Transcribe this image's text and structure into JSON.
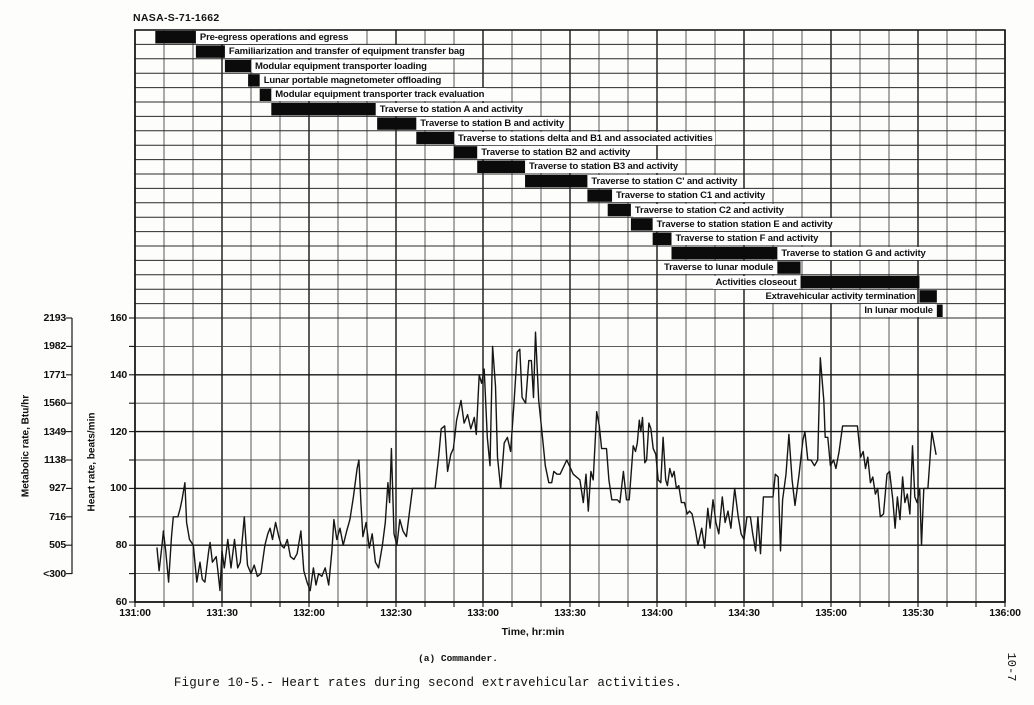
{
  "page": {
    "report_id": "NASA-S-71-1662",
    "page_number": "10-7",
    "subcaption": "(a) Commander.",
    "figure_caption": "Figure 10-5.- Heart rates during second extravehicular activities."
  },
  "colors": {
    "ink": "#161616",
    "grid_minor": "#464646",
    "gantt_line": "#2a2a2a",
    "bar_fill": "#0b0b0b",
    "paper": "#fdfdfb"
  },
  "chart_data": {
    "type": "line",
    "title": "Heart rates during second extravehicular activities - Commander",
    "xlabel": "Time, hr:min",
    "x_ticks": [
      "131:00",
      "131:30",
      "132:00",
      "132:30",
      "133:00",
      "133:30",
      "134:00",
      "134:30",
      "135:00",
      "135:30",
      "136:00"
    ],
    "x_minor_step_min": 10,
    "x_range_minutes_from_131_00": [
      0,
      300
    ],
    "grid": "on",
    "heart_rate_axis": {
      "label": "Heart rate, beats/min",
      "tick_labels": [
        "160",
        "140",
        "120",
        "100",
        "80",
        "60"
      ],
      "minor_step": 10,
      "range": [
        60,
        160
      ]
    },
    "metabolic_axis": {
      "label": "Metabolic rate, Btu/hr",
      "tick_labels": [
        "2193",
        "1982",
        "1771",
        "1560",
        "1349",
        "1138",
        "927",
        "716",
        "505",
        "<300"
      ]
    },
    "timeline_tasks": [
      {
        "label": "Pre-egress operations and egress",
        "start_min": 7,
        "end_min": 21,
        "label_side": "right"
      },
      {
        "label": "Familiarization and transfer of equipment transfer bag",
        "start_min": 21,
        "end_min": 31,
        "label_side": "right"
      },
      {
        "label": "Modular equipment transporter loading",
        "start_min": 31,
        "end_min": 40,
        "label_side": "right"
      },
      {
        "label": "Lunar portable magnetometer offloading",
        "start_min": 39,
        "end_min": 43,
        "label_side": "right"
      },
      {
        "label": "Modular equipment transporter track evaluation",
        "start_min": 43,
        "end_min": 47,
        "label_side": "right"
      },
      {
        "label": "Traverse to station A and activity",
        "start_min": 47,
        "end_min": 83,
        "label_side": "right"
      },
      {
        "label": "Traverse to station B and activity",
        "start_min": 83.5,
        "end_min": 97,
        "label_side": "right"
      },
      {
        "label": "Traverse to stations delta and B1 and associated activities",
        "start_min": 97,
        "end_min": 110,
        "label_side": "right"
      },
      {
        "label": "Traverse to station B2 and activity",
        "start_min": 110,
        "end_min": 118,
        "label_side": "right"
      },
      {
        "label": "Traverse to station B3 and activity",
        "start_min": 118,
        "end_min": 134.5,
        "label_side": "right"
      },
      {
        "label": "Traverse to station C' and activity",
        "start_min": 134.5,
        "end_min": 156,
        "label_side": "right"
      },
      {
        "label": "Traverse to station C1 and activity",
        "start_min": 156,
        "end_min": 164.5,
        "label_side": "right"
      },
      {
        "label": "Traverse to station C2 and activity",
        "start_min": 163,
        "end_min": 171,
        "label_side": "right"
      },
      {
        "label": "Traverse to station station E and activity",
        "start_min": 171,
        "end_min": 178.5,
        "label_side": "right"
      },
      {
        "label": "Traverse to station F and activity",
        "start_min": 178.5,
        "end_min": 185,
        "label_side": "right"
      },
      {
        "label": "Traverse to station G and activity",
        "start_min": 185,
        "end_min": 221.5,
        "label_side": "right"
      },
      {
        "label": "Traverse to lunar module",
        "start_min": 221.5,
        "end_min": 229.5,
        "label_side": "left"
      },
      {
        "label": "Activities closeout",
        "start_min": 229.5,
        "end_min": 270.5,
        "label_side": "left"
      },
      {
        "label": "Extravehicular activity termination",
        "start_min": 270.5,
        "end_min": 276.5,
        "label_side": "left"
      },
      {
        "label": "In lunar module",
        "start_min": 276.5,
        "end_min": 278.5,
        "label_side": "left"
      }
    ],
    "heart_rate_series": {
      "name": "Commander heart rate",
      "x_unit": "minutes after 131:00",
      "y_unit": "beats/min",
      "points": [
        [
          7.6,
          79
        ],
        [
          8.3,
          71
        ],
        [
          9.3,
          80
        ],
        [
          9.8,
          85
        ],
        [
          10.6,
          78
        ],
        [
          11.6,
          67
        ],
        [
          12.6,
          83
        ],
        [
          13.2,
          90
        ],
        [
          14.8,
          90
        ],
        [
          15.6,
          93
        ],
        [
          16.2,
          96
        ],
        [
          17.2,
          102
        ],
        [
          17.8,
          88
        ],
        [
          18.8,
          82
        ],
        [
          20.1,
          80
        ],
        [
          21.3,
          67
        ],
        [
          22.4,
          74
        ],
        [
          23.2,
          68
        ],
        [
          24.1,
          67
        ],
        [
          25.4,
          78
        ],
        [
          25.9,
          81
        ],
        [
          26.7,
          74
        ],
        [
          28,
          76
        ],
        [
          28.6,
          71
        ],
        [
          29.3,
          64
        ],
        [
          30,
          78
        ],
        [
          30.8,
          72
        ],
        [
          32,
          82
        ],
        [
          33.1,
          72
        ],
        [
          34.3,
          82
        ],
        [
          35.4,
          72
        ],
        [
          36.3,
          74
        ],
        [
          37.7,
          90
        ],
        [
          38.8,
          73
        ],
        [
          40,
          70
        ],
        [
          41.1,
          73
        ],
        [
          42.2,
          69
        ],
        [
          43.4,
          70
        ],
        [
          44.8,
          80
        ],
        [
          45.8,
          84
        ],
        [
          46.6,
          86
        ],
        [
          47.4,
          82
        ],
        [
          48.5,
          88
        ],
        [
          49.6,
          83
        ],
        [
          50.4,
          80
        ],
        [
          51.4,
          79
        ],
        [
          52.5,
          82
        ],
        [
          53.6,
          76
        ],
        [
          54.8,
          75
        ],
        [
          55.9,
          77
        ],
        [
          57.2,
          85
        ],
        [
          58.2,
          71
        ],
        [
          59.3,
          67
        ],
        [
          60.4,
          64
        ],
        [
          61.5,
          72
        ],
        [
          62.4,
          66
        ],
        [
          63.3,
          70
        ],
        [
          64.4,
          69
        ],
        [
          65.6,
          72
        ],
        [
          66.8,
          66
        ],
        [
          67.9,
          78
        ],
        [
          68.6,
          89
        ],
        [
          69.6,
          82
        ],
        [
          70.7,
          86
        ],
        [
          71.8,
          80
        ],
        [
          73,
          85
        ],
        [
          74.1,
          89
        ],
        [
          75.3,
          97
        ],
        [
          76.6,
          107
        ],
        [
          77.2,
          110
        ],
        [
          77.9,
          95
        ],
        [
          78.6,
          83
        ],
        [
          79.7,
          88
        ],
        [
          80.8,
          79
        ],
        [
          81.8,
          84
        ],
        [
          82.9,
          74
        ],
        [
          84,
          72
        ],
        [
          85.3,
          80
        ],
        [
          86.3,
          88
        ],
        [
          87.2,
          102
        ],
        [
          87.8,
          95
        ],
        [
          88.4,
          114
        ],
        [
          89.3,
          84
        ],
        [
          90.3,
          80
        ],
        [
          91.3,
          89
        ],
        [
          92.4,
          85
        ],
        [
          93.6,
          83
        ],
        [
          94.7,
          92
        ],
        [
          95.7,
          100
        ],
        [
          97.5,
          100
        ],
        [
          99.5,
          100
        ],
        [
          101.5,
          100
        ],
        [
          103.5,
          100
        ],
        [
          104.8,
          112
        ],
        [
          105.6,
          121
        ],
        [
          106.8,
          122
        ],
        [
          107.8,
          106
        ],
        [
          108.9,
          112
        ],
        [
          109.8,
          114
        ],
        [
          110.9,
          124
        ],
        [
          112.4,
          131
        ],
        [
          113.5,
          123
        ],
        [
          114.7,
          126
        ],
        [
          115.8,
          121
        ],
        [
          117,
          125
        ],
        [
          117.7,
          119
        ],
        [
          118.7,
          140
        ],
        [
          119.5,
          137
        ],
        [
          120.4,
          142
        ],
        [
          121.5,
          118
        ],
        [
          122.4,
          108
        ],
        [
          123.3,
          150
        ],
        [
          124.3,
          136
        ],
        [
          125,
          111
        ],
        [
          126.1,
          100
        ],
        [
          127.3,
          116
        ],
        [
          128.4,
          118
        ],
        [
          129.5,
          113
        ],
        [
          130.7,
          130
        ],
        [
          131.8,
          148
        ],
        [
          132.7,
          149
        ],
        [
          133.5,
          132
        ],
        [
          134.7,
          130
        ],
        [
          135.8,
          145
        ],
        [
          136.7,
          145
        ],
        [
          137.4,
          132
        ],
        [
          138.1,
          155
        ],
        [
          139.2,
          131
        ],
        [
          140.4,
          119
        ],
        [
          141.5,
          108
        ],
        [
          142.7,
          102
        ],
        [
          143.7,
          102
        ],
        [
          144.4,
          106
        ],
        [
          145.5,
          105
        ],
        [
          146.6,
          105
        ],
        [
          148.9,
          110
        ],
        [
          151.1,
          105
        ],
        [
          153.4,
          103
        ],
        [
          154.6,
          95
        ],
        [
          155.5,
          105
        ],
        [
          156.3,
          92
        ],
        [
          157.2,
          106
        ],
        [
          158,
          103
        ],
        [
          159.2,
          127
        ],
        [
          160.1,
          122
        ],
        [
          160.9,
          114
        ],
        [
          162.6,
          114
        ],
        [
          163.4,
          103
        ],
        [
          164.4,
          96
        ],
        [
          166.3,
          96
        ],
        [
          167.2,
          95
        ],
        [
          168.4,
          106
        ],
        [
          169.5,
          96
        ],
        [
          170.4,
          96
        ],
        [
          171.8,
          115
        ],
        [
          172.6,
          113
        ],
        [
          173.2,
          116
        ],
        [
          173.9,
          124
        ],
        [
          174.4,
          120
        ],
        [
          175,
          125
        ],
        [
          175.8,
          109
        ],
        [
          176.4,
          110
        ],
        [
          177.2,
          123
        ],
        [
          177.9,
          121
        ],
        [
          178.7,
          114
        ],
        [
          179.6,
          112
        ],
        [
          180.4,
          103
        ],
        [
          181.3,
          102
        ],
        [
          182.1,
          118
        ],
        [
          183,
          103
        ],
        [
          183.6,
          101
        ],
        [
          184.4,
          107
        ],
        [
          185.2,
          104
        ],
        [
          185.9,
          106
        ],
        [
          186.7,
          100
        ],
        [
          187.5,
          101
        ],
        [
          188.4,
          95
        ],
        [
          189.5,
          95
        ],
        [
          190.4,
          91
        ],
        [
          191.2,
          92
        ],
        [
          192.1,
          91
        ],
        [
          193.3,
          85
        ],
        [
          194.1,
          80
        ],
        [
          195.4,
          86
        ],
        [
          196.4,
          79
        ],
        [
          197.5,
          93
        ],
        [
          198.3,
          86
        ],
        [
          199.3,
          96
        ],
        [
          200.3,
          88
        ],
        [
          201.3,
          84
        ],
        [
          202.5,
          97
        ],
        [
          203.5,
          88
        ],
        [
          204.5,
          92
        ],
        [
          205.5,
          86
        ],
        [
          206.8,
          100
        ],
        [
          208,
          90
        ],
        [
          209,
          84
        ],
        [
          210,
          82
        ],
        [
          211,
          90
        ],
        [
          212.2,
          90
        ],
        [
          213,
          84
        ],
        [
          214,
          78
        ],
        [
          214.8,
          90
        ],
        [
          215.7,
          77
        ],
        [
          216.7,
          97
        ],
        [
          218,
          97
        ],
        [
          220,
          97
        ],
        [
          220.8,
          105
        ],
        [
          221.8,
          104
        ],
        [
          222.6,
          78
        ],
        [
          223.3,
          96
        ],
        [
          224.5,
          105
        ],
        [
          225.5,
          119
        ],
        [
          226.6,
          103
        ],
        [
          227.6,
          94
        ],
        [
          229,
          105
        ],
        [
          230.3,
          117
        ],
        [
          231,
          120
        ],
        [
          232,
          110
        ],
        [
          233.1,
          110
        ],
        [
          234.3,
          108
        ],
        [
          235.4,
          110
        ],
        [
          236.3,
          146
        ],
        [
          237.5,
          131
        ],
        [
          238,
          118
        ],
        [
          238.9,
          118
        ],
        [
          239.8,
          108
        ],
        [
          240.9,
          110
        ],
        [
          241.7,
          107
        ],
        [
          242.8,
          113
        ],
        [
          244,
          122
        ],
        [
          246,
          122
        ],
        [
          248,
          122
        ],
        [
          249.1,
          122
        ],
        [
          250.2,
          111
        ],
        [
          251.1,
          113
        ],
        [
          251.9,
          107
        ],
        [
          252.7,
          111
        ],
        [
          253.6,
          102
        ],
        [
          254.4,
          104
        ],
        [
          255.3,
          98
        ],
        [
          256.1,
          100
        ],
        [
          257,
          90
        ],
        [
          258.1,
          91
        ],
        [
          259.3,
          105
        ],
        [
          260.2,
          106
        ],
        [
          261.3,
          96
        ],
        [
          262.1,
          86
        ],
        [
          262.9,
          97
        ],
        [
          263.8,
          89
        ],
        [
          264.7,
          104
        ],
        [
          265.5,
          95
        ],
        [
          266.3,
          98
        ],
        [
          267.2,
          91
        ],
        [
          268.1,
          115
        ],
        [
          268.9,
          97
        ],
        [
          269.7,
          95
        ],
        [
          270.6,
          100
        ],
        [
          271.2,
          80
        ],
        [
          272,
          100
        ],
        [
          273.4,
          100
        ],
        [
          274.8,
          120
        ],
        [
          276.2,
          112
        ]
      ]
    }
  }
}
